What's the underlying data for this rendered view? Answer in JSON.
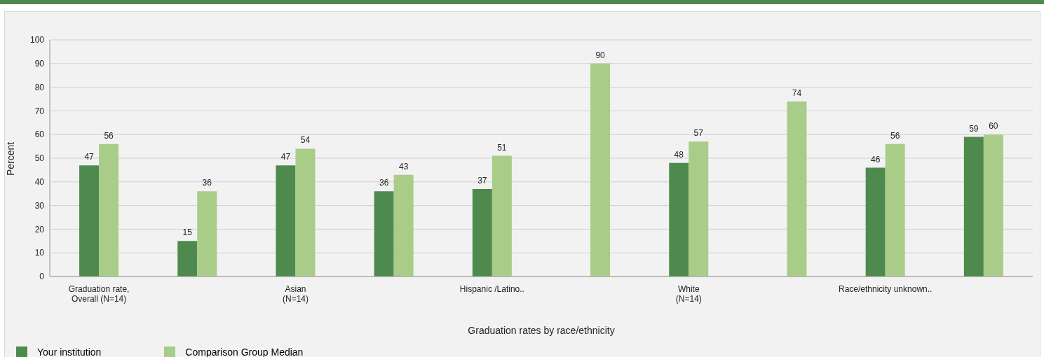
{
  "chart_data": {
    "type": "bar",
    "categories": [
      "Graduation rate,\nOverall (N=14)",
      null,
      "Asian\n(N=14)",
      null,
      "Hispanic /Latino..",
      null,
      "White\n(N=14)",
      null,
      "Race/ethnicity unknown..",
      null
    ],
    "series": [
      {
        "name": "Your institution",
        "color": "#4e8a4e",
        "values": [
          47,
          15,
          47,
          36,
          37,
          null,
          48,
          null,
          46,
          59
        ]
      },
      {
        "name": "Comparison Group Median",
        "color": "#a9cc89",
        "values": [
          56,
          36,
          54,
          43,
          51,
          90,
          57,
          74,
          56,
          60
        ]
      }
    ],
    "xlabel": "Graduation rates by race/ethnicity",
    "ylabel": "Percent",
    "ylim": [
      0,
      100
    ],
    "yticks": [
      0,
      10,
      20,
      30,
      40,
      50,
      60,
      70,
      80,
      90,
      100
    ],
    "grid": "y",
    "legend": "bottom",
    "data_labels": true
  }
}
